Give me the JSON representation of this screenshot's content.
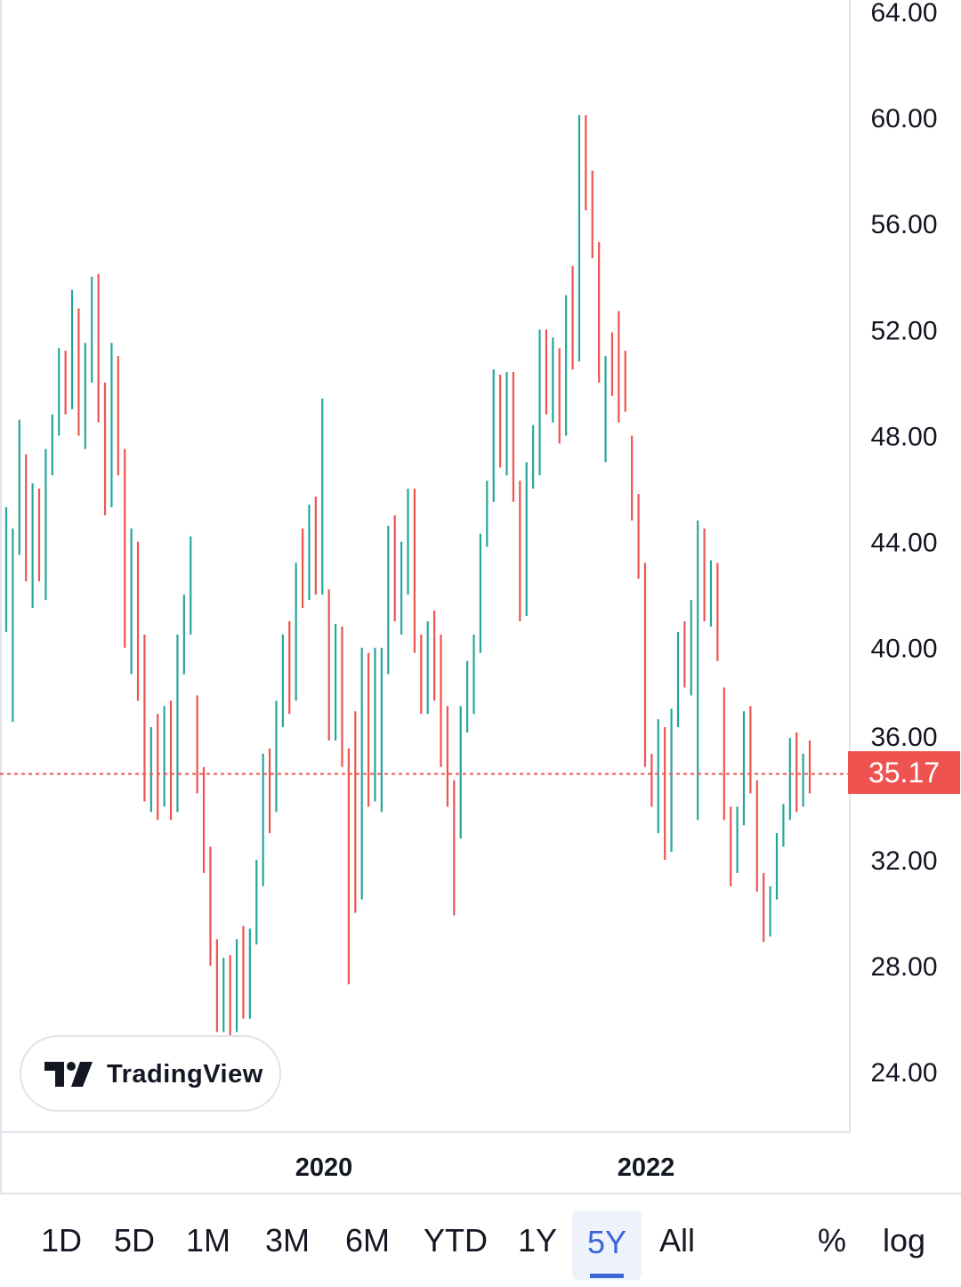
{
  "chart_data": {
    "type": "candlestick",
    "title": "",
    "interval": "weekly (approx.)",
    "x_tick_labels": [
      "2020",
      "2022"
    ],
    "y_tick_labels": [
      "64.00",
      "60.00",
      "56.00",
      "52.00",
      "48.00",
      "44.00",
      "40.00",
      "36.00",
      "32.00",
      "28.00",
      "24.00"
    ],
    "ylim": [
      22.5,
      65
    ],
    "last_price": "35.17",
    "last_price_value": 35.17,
    "colors": {
      "up": "#26a69a",
      "down": "#ef5350",
      "last_price": "#ef5350"
    },
    "ohlc": [
      [
        42,
        45.3,
        40.6,
        44.5
      ],
      [
        38,
        44.5,
        37.2,
        44
      ],
      [
        44,
        48.6,
        43.5,
        47
      ],
      [
        47,
        47.3,
        42.5,
        43
      ],
      [
        43,
        46.2,
        41.5,
        45.5
      ],
      [
        45.5,
        46,
        42.5,
        43
      ],
      [
        43,
        47.5,
        41.8,
        47
      ],
      [
        47,
        48.8,
        46.5,
        48.5
      ],
      [
        48.5,
        51.3,
        48,
        50.5
      ],
      [
        50.5,
        51.2,
        48.8,
        49.5
      ],
      [
        49.5,
        53.5,
        49,
        52.5
      ],
      [
        52.5,
        52.8,
        48,
        49
      ],
      [
        49,
        51.5,
        47.5,
        51
      ],
      [
        51,
        54,
        50,
        53.5
      ],
      [
        53.5,
        54.1,
        48.5,
        49
      ],
      [
        49,
        50,
        45,
        46
      ],
      [
        46,
        51.5,
        45.3,
        51
      ],
      [
        51,
        51,
        46.5,
        47
      ],
      [
        47,
        47.5,
        40,
        41
      ],
      [
        41,
        44.5,
        39,
        44
      ],
      [
        44,
        44,
        38,
        38.5
      ],
      [
        38.5,
        40.5,
        34.2,
        35
      ],
      [
        35,
        37,
        33.8,
        36.5
      ],
      [
        36.5,
        37.5,
        33.5,
        34
      ],
      [
        34,
        37.8,
        34,
        37.3
      ],
      [
        37.3,
        38,
        33.5,
        34
      ],
      [
        34,
        40.5,
        33.8,
        40
      ],
      [
        40,
        42,
        39,
        41.5
      ],
      [
        41.5,
        44.2,
        40.5,
        44
      ],
      [
        38,
        38.2,
        34.5,
        35
      ],
      [
        35,
        35.5,
        31.5,
        32
      ],
      [
        32,
        32.5,
        28,
        28.5
      ],
      [
        28.5,
        29,
        25.5,
        26
      ],
      [
        26,
        28.3,
        25.5,
        27.8
      ],
      [
        27.8,
        28.4,
        25.3,
        25.8
      ],
      [
        25.8,
        29,
        25.5,
        28.5
      ],
      [
        28.5,
        29.5,
        26,
        26.5
      ],
      [
        26.5,
        29.4,
        26,
        29
      ],
      [
        29,
        32,
        28.8,
        31.5
      ],
      [
        31.5,
        36,
        31,
        35.5
      ],
      [
        35.5,
        36.2,
        33,
        34
      ],
      [
        34,
        38,
        33.8,
        37.5
      ],
      [
        37.5,
        40.5,
        37,
        40
      ],
      [
        40,
        41,
        37.5,
        38
      ],
      [
        38,
        43.2,
        38,
        43
      ],
      [
        43,
        44.5,
        41.5,
        42
      ],
      [
        42,
        45.4,
        41.8,
        45
      ],
      [
        45,
        45.7,
        42,
        42.5
      ],
      [
        42.5,
        49.4,
        42,
        49
      ],
      [
        42,
        42.2,
        36.5,
        37
      ],
      [
        37,
        40.9,
        36.5,
        40.5
      ],
      [
        40.5,
        40.8,
        35.5,
        36
      ],
      [
        36,
        36.2,
        27.3,
        35
      ],
      [
        35,
        37.6,
        30,
        31
      ],
      [
        31,
        40,
        30.5,
        39.5
      ],
      [
        39.5,
        39.8,
        34,
        34.5
      ],
      [
        34.5,
        40,
        34.2,
        39.5
      ],
      [
        34,
        40,
        33.8,
        39.5
      ],
      [
        39.5,
        44.6,
        39,
        44
      ],
      [
        44,
        45,
        41,
        42
      ],
      [
        42,
        44,
        40.5,
        43.5
      ],
      [
        43.5,
        46,
        42,
        45.5
      ],
      [
        45.5,
        46,
        39.8,
        40
      ],
      [
        40,
        40.5,
        37.5,
        38
      ],
      [
        38,
        41,
        37.5,
        40.5
      ],
      [
        40.5,
        41.4,
        38,
        38.5
      ],
      [
        38.5,
        40.5,
        35.5,
        36
      ],
      [
        36,
        37.8,
        34,
        34.5
      ],
      [
        34.5,
        35,
        29.9,
        30.2
      ],
      [
        33,
        37.8,
        32.8,
        37.5
      ],
      [
        37.5,
        39.5,
        36.8,
        39
      ],
      [
        39,
        40.5,
        37.5,
        40
      ],
      [
        40,
        44.3,
        39.8,
        44
      ],
      [
        44,
        46.3,
        43.8,
        46
      ],
      [
        46,
        50.5,
        45.5,
        50
      ],
      [
        50,
        50.3,
        46.8,
        47.5
      ],
      [
        47.5,
        50.4,
        46.5,
        50
      ],
      [
        50,
        50.4,
        45.5,
        46
      ],
      [
        46,
        46.3,
        41,
        41.5
      ],
      [
        41.5,
        47,
        41.2,
        46.5
      ],
      [
        46.5,
        48.4,
        46,
        47.5
      ],
      [
        47.5,
        52,
        46.5,
        51.5
      ],
      [
        51.5,
        52,
        48.8,
        49.5
      ],
      [
        49.5,
        51.7,
        48.5,
        51
      ],
      [
        51,
        51.3,
        47.7,
        48.5
      ],
      [
        48.5,
        53.3,
        48,
        53
      ],
      [
        53,
        54.4,
        50.5,
        51
      ],
      [
        51,
        60.1,
        50.8,
        59.5
      ],
      [
        59.5,
        60.1,
        56.5,
        57
      ],
      [
        57,
        58,
        54.7,
        55
      ],
      [
        55,
        55.3,
        50,
        50.5
      ],
      [
        47.2,
        51,
        47,
        50.8
      ],
      [
        50.8,
        51.9,
        49.5,
        50
      ],
      [
        50,
        52.7,
        48.5,
        49
      ],
      [
        51,
        51.2,
        48.9,
        49
      ],
      [
        47.8,
        48,
        44.8,
        45
      ],
      [
        45,
        45.8,
        42.6,
        43
      ],
      [
        43,
        43.2,
        35.5,
        36
      ],
      [
        36,
        36,
        34,
        34.5
      ],
      [
        34.5,
        37.3,
        33,
        36.8
      ],
      [
        36.8,
        37,
        32,
        32.5
      ],
      [
        32.5,
        37.7,
        32.3,
        37.5
      ],
      [
        37.5,
        40.6,
        37,
        40.2
      ],
      [
        40.2,
        41,
        38.5,
        39
      ],
      [
        39,
        41.8,
        38.2,
        41.5
      ],
      [
        33.8,
        44.8,
        33.5,
        44
      ],
      [
        44,
        44.5,
        41,
        41.5
      ],
      [
        41.5,
        43.3,
        40.8,
        43
      ],
      [
        43,
        43.2,
        39.5,
        40
      ],
      [
        38.5,
        38.5,
        33.5,
        34
      ],
      [
        34,
        34,
        31,
        32
      ],
      [
        32,
        34,
        31.5,
        33.5
      ],
      [
        33.5,
        37.6,
        33.3,
        37.3
      ],
      [
        37.3,
        37.8,
        34.5,
        35
      ],
      [
        35,
        35,
        30.8,
        31.2
      ],
      [
        31.2,
        31.5,
        28.9,
        29.3
      ],
      [
        29.3,
        31,
        29.1,
        30.8
      ],
      [
        30.8,
        33,
        30.5,
        32.7
      ],
      [
        32.7,
        34.1,
        32.5,
        33.8
      ],
      [
        33.8,
        36.6,
        33.5,
        36.2
      ],
      [
        36.2,
        36.8,
        33.8,
        34.2
      ],
      [
        34.2,
        36,
        34,
        35.8
      ],
      [
        35.8,
        36.5,
        34.5,
        35.17
      ]
    ]
  },
  "logo": {
    "text": "TradingView"
  },
  "ranges": [
    "1D",
    "5D",
    "1M",
    "3M",
    "6M",
    "YTD",
    "1Y",
    "5Y",
    "All"
  ],
  "active_range": "5Y",
  "toggles": {
    "percent": "%",
    "log": "log"
  }
}
